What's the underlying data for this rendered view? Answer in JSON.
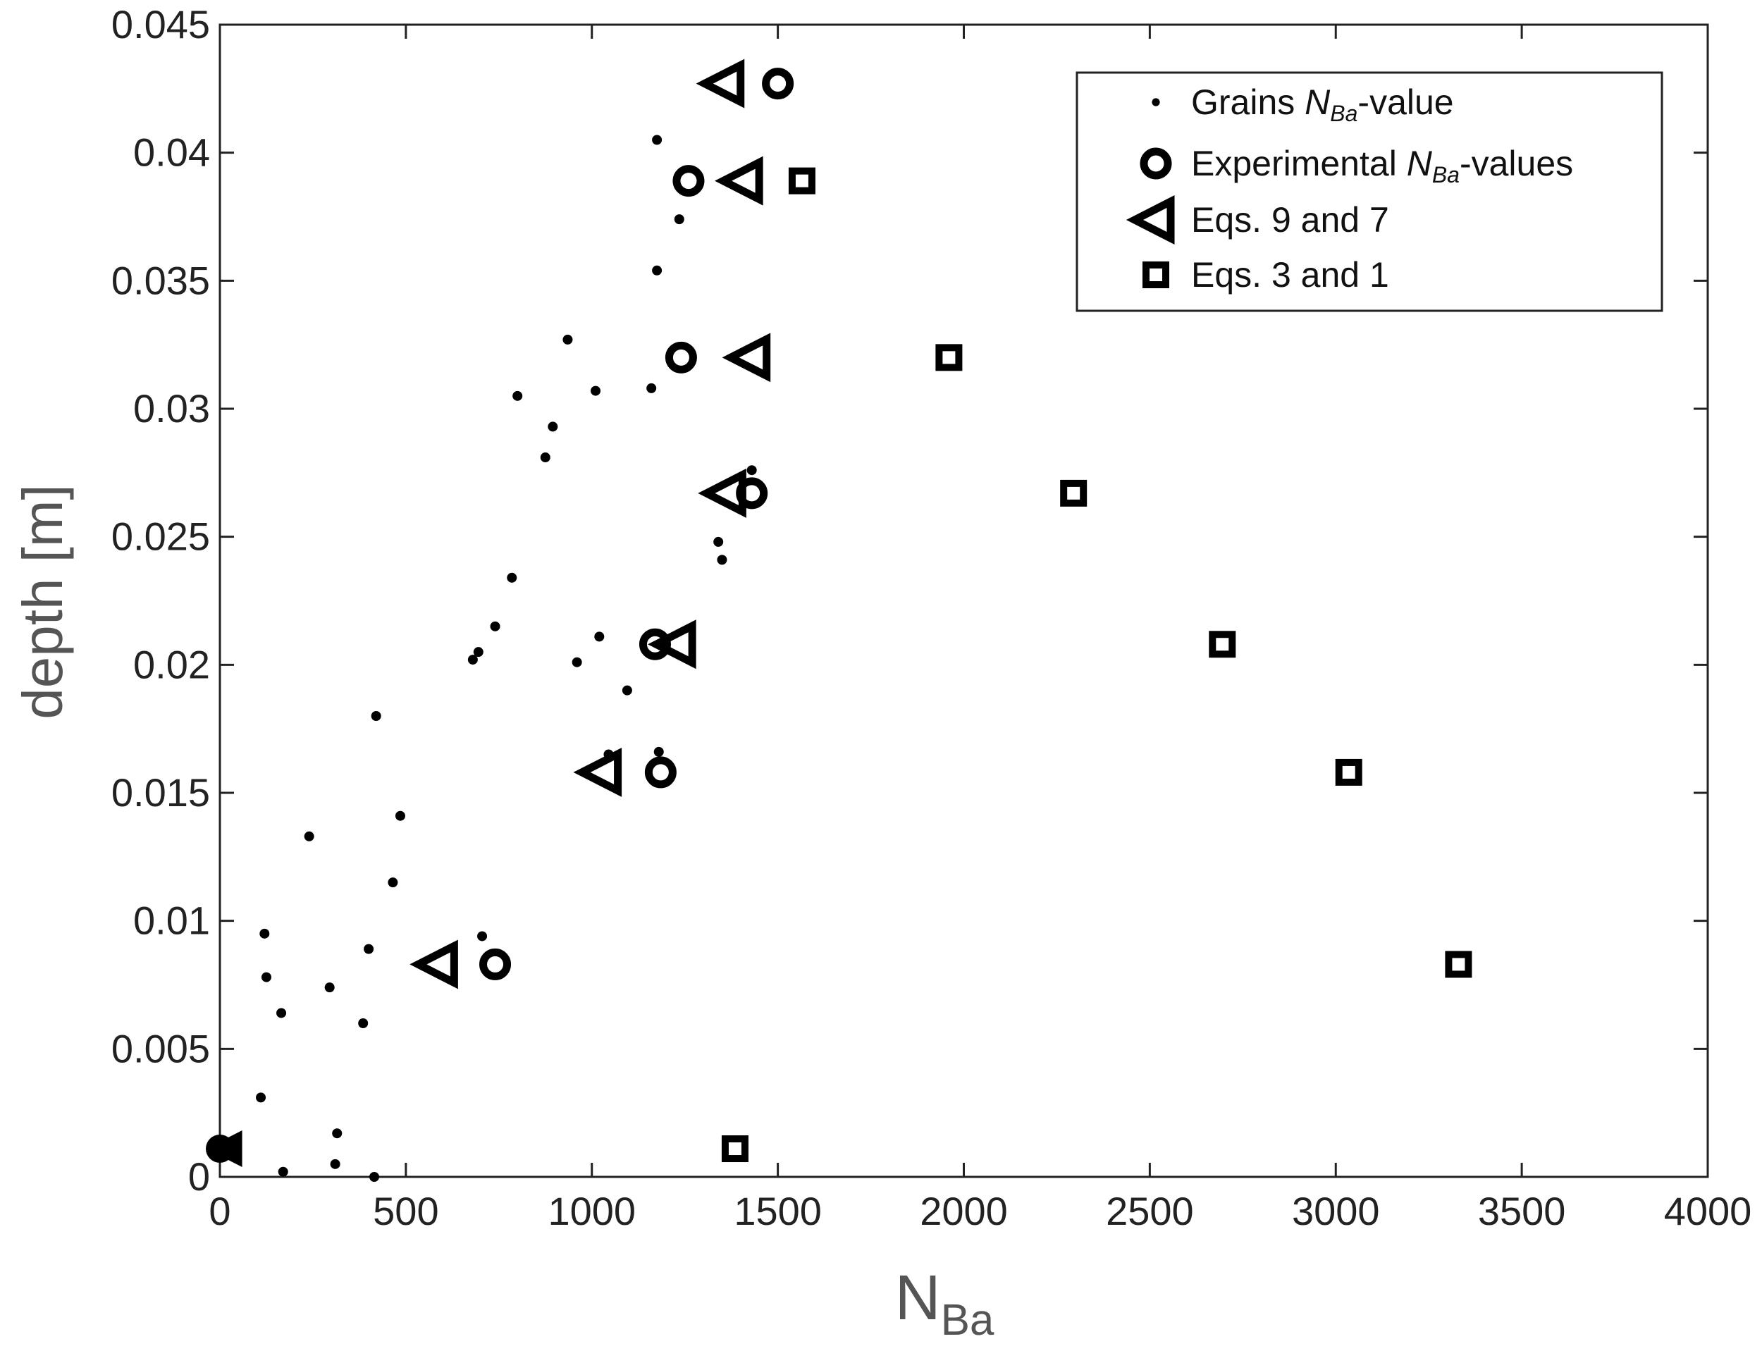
{
  "chart_data": {
    "type": "scatter",
    "xlabel": "N",
    "xlabel_sub": "Ba",
    "ylabel": "depth [m]",
    "xlim": [
      0,
      4000
    ],
    "ylim": [
      0,
      0.045
    ],
    "x_ticks": [
      "0",
      "500",
      "1000",
      "1500",
      "2000",
      "2500",
      "3000",
      "3500",
      "4000"
    ],
    "y_ticks": [
      "0",
      "0.005",
      "0.01",
      "0.015",
      "0.02",
      "0.025",
      "0.03",
      "0.035",
      "0.04",
      "0.045"
    ],
    "grid": false,
    "legend_position": "top-right",
    "series": [
      {
        "name": "Grains NBa-value",
        "legend_parts": [
          "Grains ",
          "N",
          "Ba",
          "-value"
        ],
        "marker": "dot",
        "points": [
          [
            1175,
            0.0405
          ],
          [
            1235,
            0.0374
          ],
          [
            1175,
            0.0354
          ],
          [
            935,
            0.0327
          ],
          [
            800,
            0.0305
          ],
          [
            1010,
            0.0307
          ],
          [
            1160,
            0.0308
          ],
          [
            895,
            0.0293
          ],
          [
            875,
            0.0281
          ],
          [
            1430,
            0.0276
          ],
          [
            1340,
            0.0248
          ],
          [
            1350,
            0.0241
          ],
          [
            785,
            0.0234
          ],
          [
            740,
            0.0215
          ],
          [
            695,
            0.0205
          ],
          [
            680,
            0.0202
          ],
          [
            1020,
            0.0211
          ],
          [
            960,
            0.0201
          ],
          [
            1095,
            0.019
          ],
          [
            420,
            0.018
          ],
          [
            1180,
            0.0166
          ],
          [
            1045,
            0.0165
          ],
          [
            485,
            0.0141
          ],
          [
            240,
            0.0133
          ],
          [
            465,
            0.0115
          ],
          [
            120,
            0.0095
          ],
          [
            705,
            0.0094
          ],
          [
            400,
            0.0089
          ],
          [
            125,
            0.0078
          ],
          [
            295,
            0.0074
          ],
          [
            165,
            0.0064
          ],
          [
            385,
            0.006
          ],
          [
            110,
            0.0031
          ],
          [
            315,
            0.0017
          ],
          [
            310,
            0.0005
          ],
          [
            170,
            0.0002
          ],
          [
            415,
            0.0
          ]
        ]
      },
      {
        "name": "Experimental NBa-values",
        "legend_parts": [
          "Experimental ",
          "N",
          "Ba",
          "-values"
        ],
        "marker": "circle",
        "points": [
          [
            1500,
            0.0427
          ],
          [
            1260,
            0.0389
          ],
          [
            1240,
            0.032
          ],
          [
            1430,
            0.0267
          ],
          [
            1170,
            0.0208
          ],
          [
            1185,
            0.0158
          ],
          [
            740,
            0.0083
          ],
          [
            0,
            0.0011
          ]
        ]
      },
      {
        "name": "Eqs. 9 and 7",
        "marker": "triangle-left",
        "points": [
          [
            1360,
            0.0427
          ],
          [
            1410,
            0.0389
          ],
          [
            1430,
            0.032
          ],
          [
            1365,
            0.0267
          ],
          [
            1230,
            0.0208
          ],
          [
            1030,
            0.0158
          ],
          [
            590,
            0.0083
          ],
          [
            20,
            0.0011
          ]
        ]
      },
      {
        "name": "Eqs. 3 and 1",
        "marker": "square",
        "points": [
          [
            1565,
            0.0389
          ],
          [
            1960,
            0.032
          ],
          [
            2295,
            0.0267
          ],
          [
            2695,
            0.0208
          ],
          [
            3035,
            0.0158
          ],
          [
            3330,
            0.0083
          ],
          [
            1385,
            0.0011
          ]
        ]
      }
    ]
  }
}
